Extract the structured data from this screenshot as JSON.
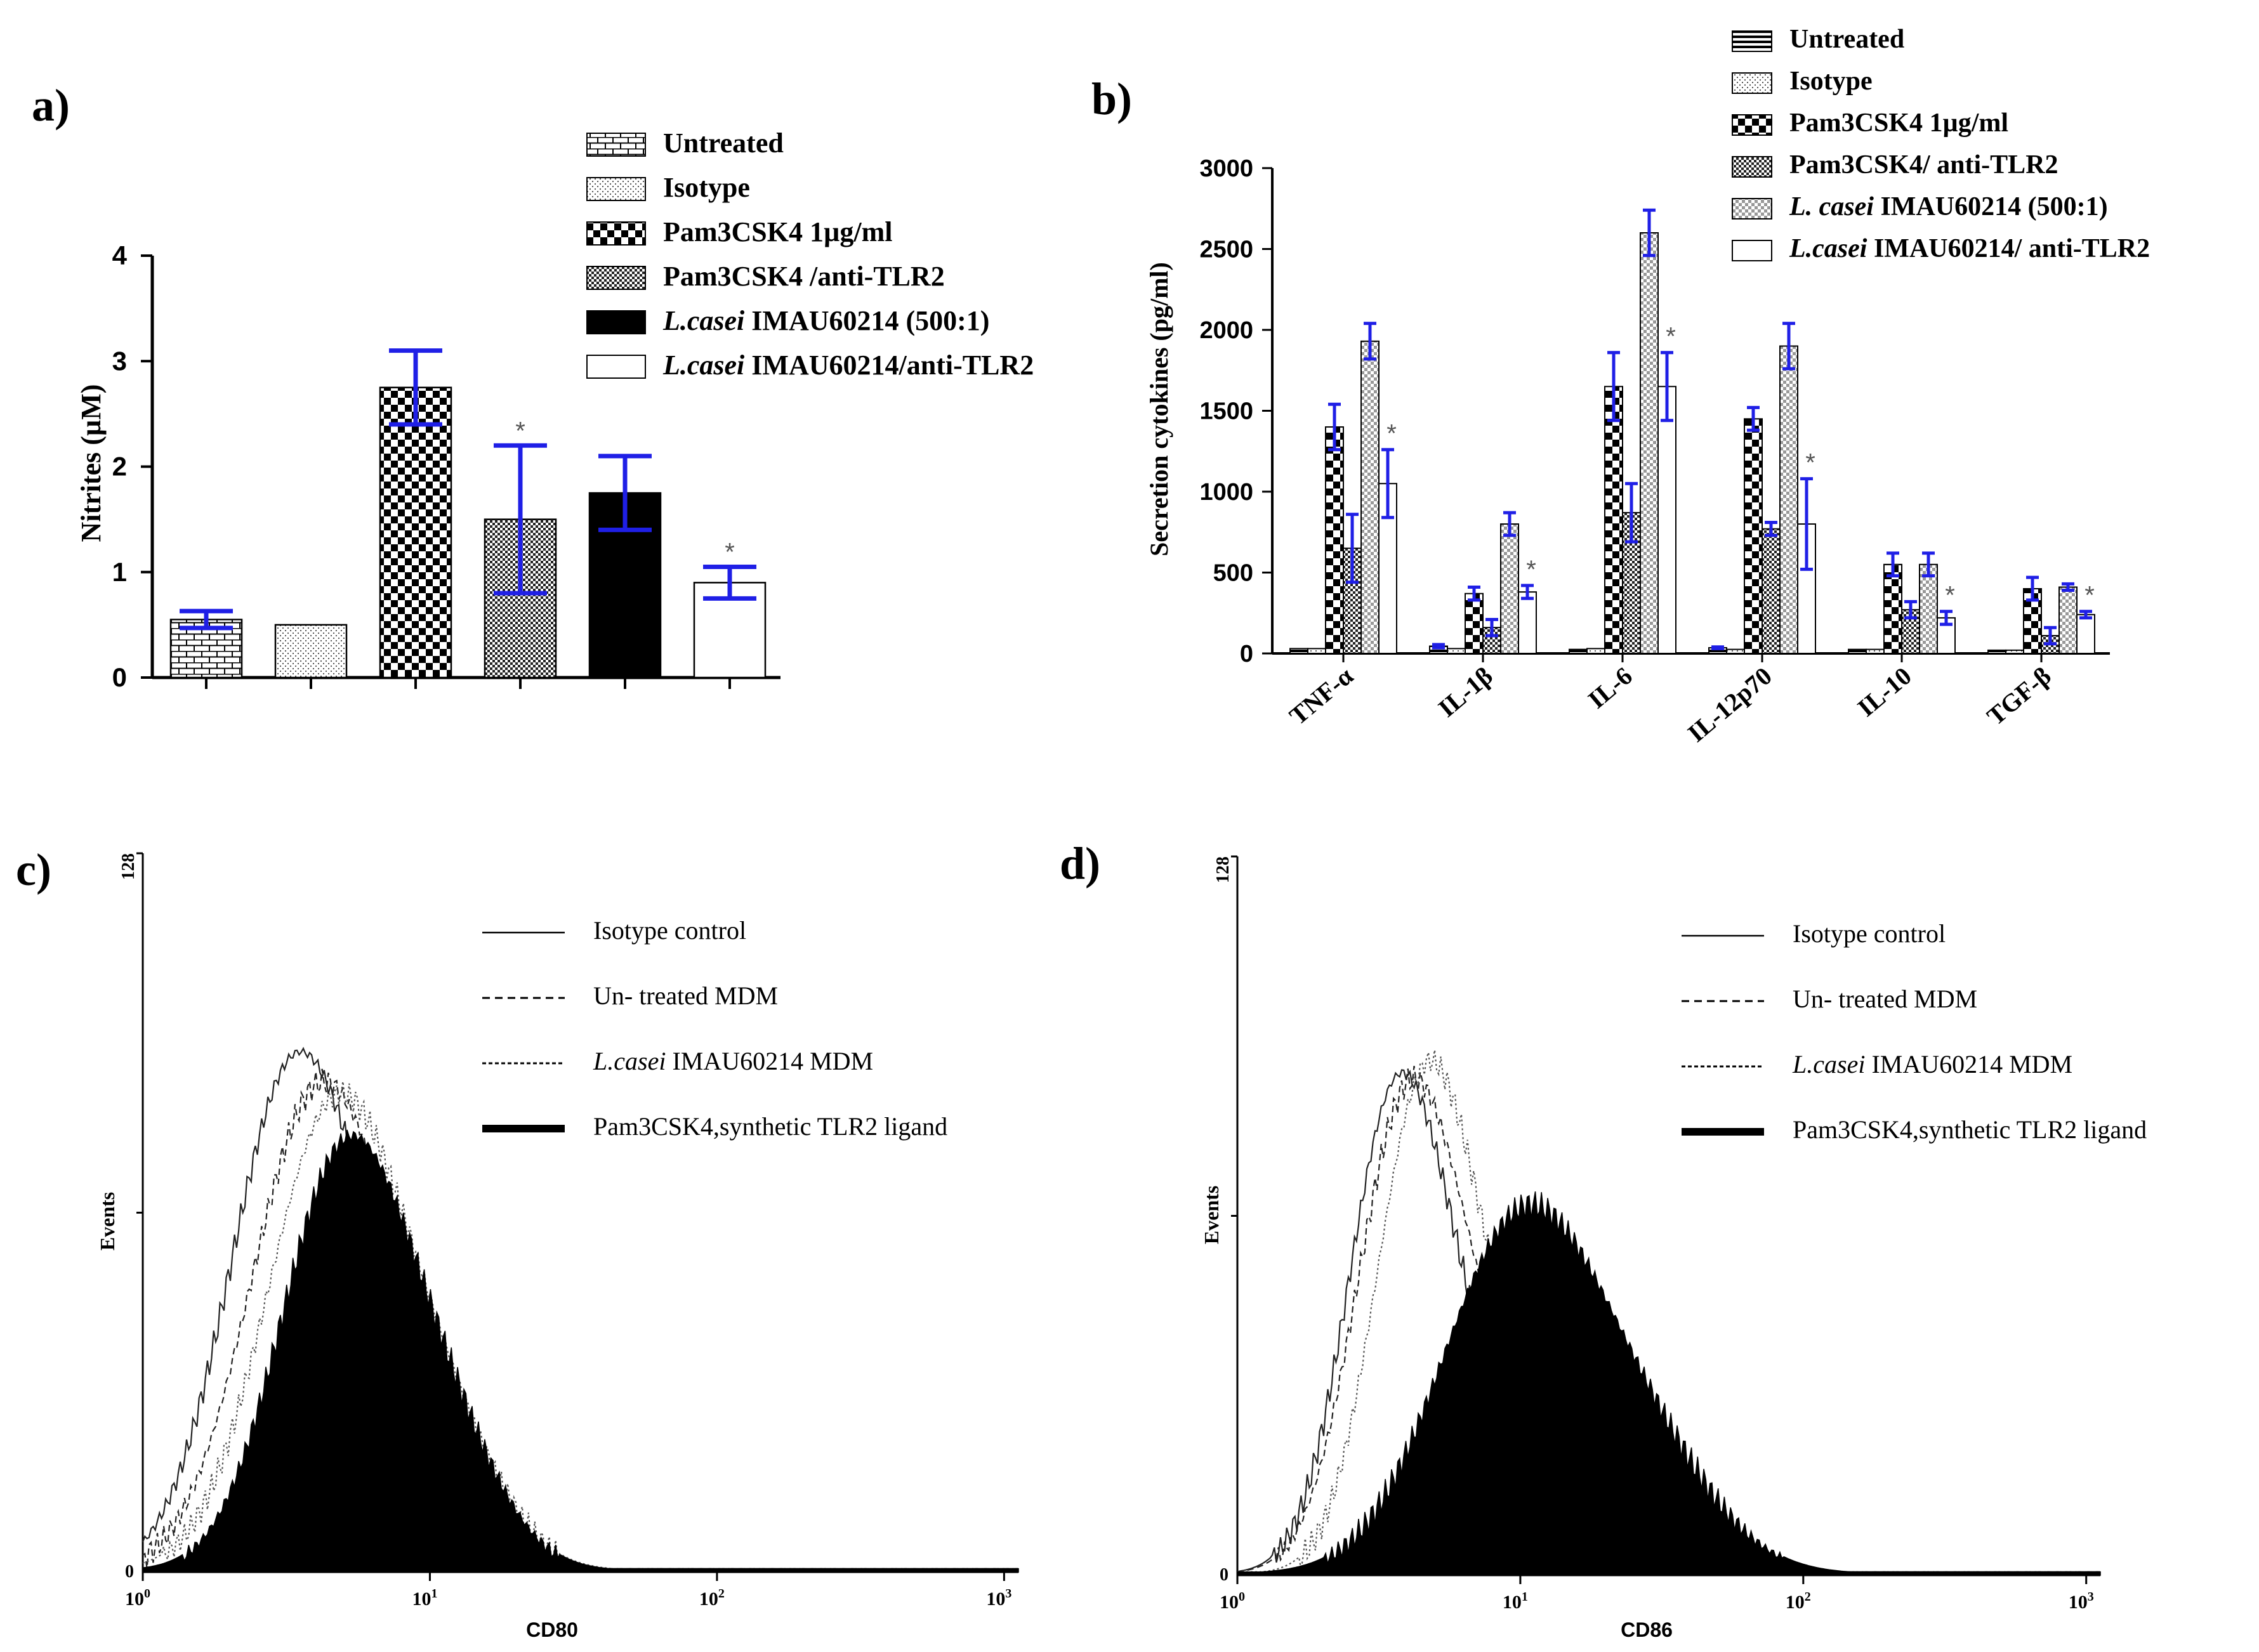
{
  "colors": {
    "axis": "#000000",
    "error_bar": "#1f1fe6",
    "fill_dark": "#000000",
    "fill_light": "#ffffff"
  },
  "chart_data": [
    {
      "panel": "a)",
      "type": "bar",
      "ylabel": "Nitrites (µM)",
      "xlabel": "",
      "ylim": [
        0,
        4
      ],
      "yticks": [
        "0",
        "1",
        "2",
        "3",
        "4"
      ],
      "legend": [
        {
          "italic": "",
          "text": "Untreated",
          "pattern": "brick"
        },
        {
          "italic": "",
          "text": "Isotype",
          "pattern": "dots"
        },
        {
          "italic": "",
          "text": "Pam3CSK4 1µg/ml",
          "pattern": "checker"
        },
        {
          "italic": "",
          "text": "Pam3CSK4 /anti-TLR2",
          "pattern": "finecheck"
        },
        {
          "italic": "L.casei",
          "text": " IMAU60214 (500:1)",
          "pattern": "black"
        },
        {
          "italic": "L.casei",
          "text": " IMAU60214/anti-TLR2",
          "pattern": "white"
        }
      ],
      "values": [
        0.55,
        0.5,
        2.75,
        1.5,
        1.75,
        0.9
      ],
      "errors": [
        0.08,
        0,
        0.35,
        0.7,
        0.35,
        0.15
      ],
      "significance": [
        "",
        "",
        "",
        "*",
        "",
        "*"
      ]
    },
    {
      "panel": "b)",
      "type": "bar",
      "ylabel": "Secretion cytokines (pg/ml)",
      "xlabel": "",
      "ylim": [
        0,
        3000
      ],
      "yticks": [
        "0",
        "500",
        "1000",
        "1500",
        "2000",
        "2500",
        "3000"
      ],
      "categories": [
        "TNF-α",
        "IL-1β",
        "IL-6",
        "IL-12p70",
        "IL-10",
        "TGF-β"
      ],
      "legend": [
        {
          "italic": "",
          "text": "Untreated",
          "pattern": "hstripe"
        },
        {
          "italic": "",
          "text": "Isotype",
          "pattern": "dots"
        },
        {
          "italic": "",
          "text": "Pam3CSK4 1µg/ml",
          "pattern": "checker"
        },
        {
          "italic": "",
          "text": "Pam3CSK4/ anti-TLR2",
          "pattern": "finecheck"
        },
        {
          "italic": "L. casei",
          "text": " IMAU60214 (500:1)",
          "pattern": "lightcheck"
        },
        {
          "italic": "L.casei",
          "text": " IMAU60214/ anti-TLR2",
          "pattern": "white"
        }
      ],
      "series": [
        {
          "name": "Untreated",
          "values": [
            30,
            45,
            25,
            35,
            25,
            20
          ],
          "errors": [
            0,
            10,
            0,
            5,
            0,
            0
          ]
        },
        {
          "name": "Isotype",
          "values": [
            30,
            30,
            30,
            25,
            25,
            20
          ],
          "errors": [
            0,
            0,
            0,
            0,
            0,
            0
          ]
        },
        {
          "name": "Pam3CSK4 1µg/ml",
          "values": [
            1400,
            370,
            1650,
            1450,
            550,
            400
          ],
          "errors": [
            140,
            40,
            210,
            70,
            70,
            70
          ]
        },
        {
          "name": "Pam3CSK4/ anti-TLR2",
          "values": [
            650,
            160,
            870,
            770,
            270,
            110
          ],
          "errors": [
            210,
            50,
            180,
            40,
            50,
            50
          ]
        },
        {
          "name": "L. casei IMAU60214 (500:1)",
          "values": [
            1930,
            800,
            2600,
            1900,
            550,
            410
          ],
          "errors": [
            110,
            70,
            140,
            140,
            70,
            20
          ]
        },
        {
          "name": "L.casei IMAU60214/ anti-TLR2",
          "values": [
            1050,
            380,
            1650,
            800,
            220,
            240
          ],
          "errors": [
            210,
            40,
            210,
            280,
            40,
            20
          ]
        }
      ],
      "significance_series": 5,
      "significance": [
        "*",
        "*",
        "*",
        "*",
        "*",
        "*"
      ]
    },
    {
      "panel": "c)",
      "type": "area",
      "xlabel": "CD80",
      "ylabel": "Events",
      "ymax_label": "128",
      "ymin_label": "0",
      "xticks": [
        {
          "base": "10",
          "exp": "0"
        },
        {
          "base": "10",
          "exp": "1"
        },
        {
          "base": "10",
          "exp": "2"
        },
        {
          "base": "10",
          "exp": "3"
        }
      ],
      "xlim_log10": [
        0,
        3.05
      ],
      "ylim": [
        0,
        128
      ],
      "legend": [
        {
          "italic": "",
          "text": "Isotype control",
          "style": "solid"
        },
        {
          "italic": "",
          "text": "Un- treated MDM",
          "style": "dashed"
        },
        {
          "italic": "L.casei",
          "text": " IMAU60214 MDM",
          "style": "dotted"
        },
        {
          "italic": "",
          "text": "Pam3CSK4,synthetic TLR2 ligand",
          "style": "filled"
        }
      ],
      "series": [
        {
          "name": "Isotype control",
          "peak_log10": 0.52,
          "peak_events": 87,
          "width": 0.22
        },
        {
          "name": "Un- treated MDM",
          "peak_log10": 0.6,
          "peak_events": 82,
          "width": 0.23
        },
        {
          "name": "L.casei IMAU60214 MDM",
          "peak_log10": 0.66,
          "peak_events": 80,
          "width": 0.23
        },
        {
          "name": "Pam3CSK4,synthetic TLR2 ligand",
          "peak_log10": 0.7,
          "peak_events": 73,
          "width": 0.22
        }
      ]
    },
    {
      "panel": "d)",
      "type": "area",
      "xlabel": "CD86",
      "ylabel": "Events",
      "ymax_label": "128",
      "ymin_label": "0",
      "xticks": [
        {
          "base": "10",
          "exp": "0"
        },
        {
          "base": "10",
          "exp": "1"
        },
        {
          "base": "10",
          "exp": "2"
        },
        {
          "base": "10",
          "exp": "3"
        }
      ],
      "xlim_log10": [
        0,
        3.05
      ],
      "ylim": [
        0,
        128
      ],
      "legend": [
        {
          "italic": "",
          "text": "Isotype control",
          "style": "solid"
        },
        {
          "italic": "",
          "text": "Un- treated MDM",
          "style": "dashed"
        },
        {
          "italic": "L.casei",
          "text": " IMAU60214 MDM",
          "style": "dotted"
        },
        {
          "italic": "",
          "text": "Pam3CSK4,synthetic TLR2 ligand",
          "style": "filled"
        }
      ],
      "series": [
        {
          "name": "Isotype control",
          "peak_log10": 0.56,
          "peak_events": 84,
          "width": 0.17
        },
        {
          "name": "Un- treated MDM",
          "peak_log10": 0.6,
          "peak_events": 83,
          "width": 0.18
        },
        {
          "name": "L.casei IMAU60214 MDM",
          "peak_log10": 0.66,
          "peak_events": 86,
          "width": 0.17
        },
        {
          "name": "Pam3CSK4,synthetic TLR2 ligand",
          "peak_log10": 1.0,
          "peak_events": 62,
          "width": 0.28
        }
      ]
    }
  ]
}
